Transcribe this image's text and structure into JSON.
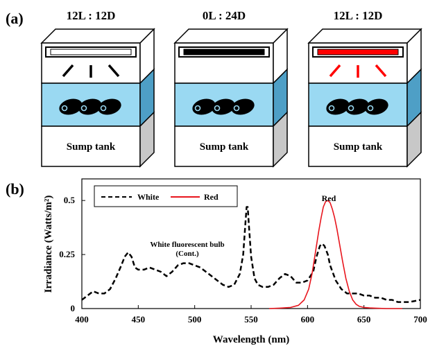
{
  "panel_a": {
    "label": "(a)",
    "tanks": [
      {
        "cycle": "12L : 12D",
        "sump_label": "Sump tank",
        "lamp_color": "#ffffff",
        "rays": true,
        "ray_color": "#000000"
      },
      {
        "cycle": "0L : 24D",
        "sump_label": "Sump tank",
        "lamp_color": "#000000",
        "rays": false,
        "ray_color": ""
      },
      {
        "cycle": "12L : 12D",
        "sump_label": "Sump tank",
        "lamp_color": "#ff0000",
        "rays": true,
        "ray_color": "#ff0000"
      }
    ],
    "colors": {
      "water": "#9ad9f2",
      "water_side": "#4e9fc6",
      "box_side": "#c8c8c8",
      "fish": "#000000"
    }
  },
  "panel_b": {
    "label": "(b)",
    "annotations": {
      "red_peak": "Red",
      "white_note_1": "White fluorescent bulb",
      "white_note_2": "(Cont.)"
    }
  },
  "chart_data": {
    "type": "line",
    "xlabel": "Wavelength (nm)",
    "ylabel": "Irradiance (Watts/m²)",
    "xlim": [
      400,
      700
    ],
    "ylim": [
      0,
      0.6
    ],
    "x_ticks": [
      400,
      450,
      500,
      550,
      600,
      650,
      700
    ],
    "y_ticks": [
      0,
      0.25,
      0.5
    ],
    "y_tick_labels": [
      "0",
      "0.25",
      "0.5"
    ],
    "grid": false,
    "legend_position": "top-left",
    "series": [
      {
        "name": "White",
        "color": "#000000",
        "style": "dashed",
        "x": [
          400,
          405,
          410,
          415,
          420,
          425,
          430,
          435,
          438,
          441,
          444,
          447,
          450,
          455,
          460,
          465,
          470,
          475,
          480,
          485,
          490,
          495,
          500,
          505,
          510,
          515,
          520,
          525,
          530,
          535,
          540,
          543,
          545,
          546,
          547,
          548,
          550,
          553,
          556,
          560,
          565,
          570,
          575,
          580,
          585,
          590,
          595,
          600,
          605,
          608,
          611,
          613,
          615,
          618,
          620,
          625,
          630,
          635,
          640,
          645,
          650,
          655,
          660,
          665,
          670,
          675,
          680,
          685,
          690,
          695,
          700
        ],
        "y": [
          0.04,
          0.06,
          0.08,
          0.07,
          0.07,
          0.09,
          0.14,
          0.2,
          0.24,
          0.26,
          0.24,
          0.19,
          0.18,
          0.18,
          0.19,
          0.18,
          0.17,
          0.15,
          0.17,
          0.2,
          0.21,
          0.21,
          0.2,
          0.19,
          0.17,
          0.15,
          0.13,
          0.11,
          0.1,
          0.11,
          0.16,
          0.25,
          0.4,
          0.47,
          0.47,
          0.39,
          0.24,
          0.14,
          0.11,
          0.1,
          0.1,
          0.11,
          0.14,
          0.16,
          0.15,
          0.12,
          0.12,
          0.13,
          0.17,
          0.24,
          0.29,
          0.3,
          0.29,
          0.25,
          0.2,
          0.13,
          0.09,
          0.07,
          0.07,
          0.07,
          0.06,
          0.06,
          0.05,
          0.05,
          0.04,
          0.04,
          0.03,
          0.03,
          0.03,
          0.035,
          0.04
        ]
      },
      {
        "name": "Red",
        "color": "#e8141c",
        "style": "solid",
        "x": [
          566,
          575,
          585,
          592,
          597,
          601,
          604,
          607,
          610,
          612,
          614,
          616,
          618,
          620,
          622,
          624,
          626,
          628,
          631,
          634,
          637,
          640,
          643,
          646,
          650,
          655,
          660,
          670,
          680,
          684
        ],
        "y": [
          0.0,
          0.002,
          0.005,
          0.015,
          0.04,
          0.09,
          0.16,
          0.26,
          0.36,
          0.42,
          0.47,
          0.495,
          0.5,
          0.49,
          0.46,
          0.42,
          0.37,
          0.31,
          0.22,
          0.14,
          0.08,
          0.04,
          0.02,
          0.01,
          0.005,
          0.003,
          0.002,
          0.0,
          0.0,
          0.0
        ]
      }
    ]
  }
}
